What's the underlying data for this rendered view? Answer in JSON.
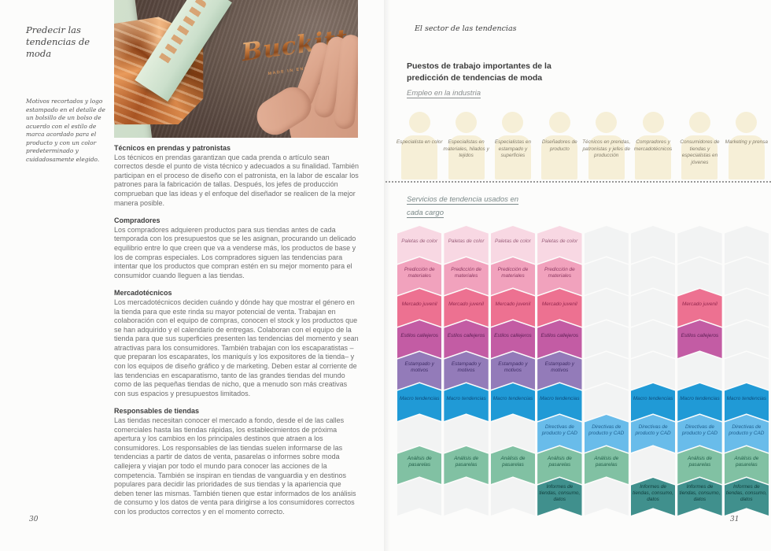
{
  "left_page": {
    "margin_title": "Predecir las tendencias de moda",
    "caption": "Motivos recortados y logo estampado en el detalle de un bolsillo de un bolso de acuerdo con el estilo de marca acordado para el producto y con un color predeterminado y cuidadosamente elegido.",
    "photo": {
      "logo_text": "Buckitt",
      "made_in_text": "MADE IN ENGLAND"
    },
    "sections": [
      {
        "heading": "Técnicos en prendas y patronistas",
        "body": "Los técnicos en prendas garantizan que cada prenda o artículo sean correctos desde el punto de vista técnico y adecuados a su finalidad. También participan en el proceso de diseño con el patronista, en la labor de escalar los patrones para la fabricación de tallas. Después, los jefes de producción comprueban que las ideas y el enfoque del diseñador se realicen de la mejor manera posible."
      },
      {
        "heading": "Compradores",
        "body": "Los compradores adquieren productos para sus tiendas antes de cada temporada con los presupuestos que se les asignan, procurando un delicado equilibrio entre lo que creen que va a venderse más, los productos de base y los de compras especiales. Los compradores siguen las tendencias para intentar que los productos que compran estén en su mejor momento para el consumidor cuando lleguen a las tiendas."
      },
      {
        "heading": "Mercadotécnicos",
        "body": "Los mercadotécnicos deciden cuándo y dónde hay que mostrar el género en la tienda para que este rinda su mayor potencial de venta. Trabajan en colaboración con el equipo de compras, conocen el stock y los productos que se han adquirido y el calendario de entregas. Colaboran con el equipo de la tienda para que sus superficies presenten las tendencias del momento y sean atractivas para los consumidores. También trabajan con los escaparatistas –que preparan los escaparates, los maniquís y los expositores de la tienda– y con los equipos de diseño gráfico y de marketing. Deben estar al corriente de las tendencias en escaparatismo, tanto de las grandes tiendas del mundo como de las pequeñas tiendas de nicho, que a menudo son más creativas con sus espacios y presupuestos limitados."
      },
      {
        "heading": "Responsables de tiendas",
        "body": "Las tiendas necesitan conocer el mercado a fondo, desde el de las calles comerciales hasta las tiendas rápidas, los establecimientos de próxima apertura y los cambios en los principales destinos que atraen a los consumidores. Los responsables de las tiendas suelen informarse de las tendencias a partir de datos de venta, pasarelas o informes sobre moda callejera y viajan por todo el mundo para conocer las acciones de la competencia. También se inspiran en tiendas de vanguardia y en destinos populares para decidir las prioridades de sus tiendas y la apariencia que deben tener las mismas. También tienen que estar informados de los análisis de consumo y los datos de venta para dirigirse a los consumidores correctos con los productos correctos y en el momento correcto."
      }
    ],
    "page_number": "30"
  },
  "right_page": {
    "running_head": "El sector de las tendencias",
    "title": "Puestos de trabajo importantes de la predicción de tendencias de moda",
    "subtitle": "Empleo en la industria",
    "roles": [
      "Especialista en color",
      "Especialistas en materiales, hilados y tejidos",
      "Especialistas en estampado y superficies",
      "Diseñadores de producto",
      "Técnicos en prendas, patronistas y jefes de producción",
      "Compradores y mercadotécnicos",
      "Consumidores de tiendas y especialistas en jóvenes",
      "Marketing y prensa"
    ],
    "services_heading": "Servicios de tendencia usados en cada cargo",
    "services_matrix": {
      "type": "matrix-diagram",
      "empty_color": "#f2f3f3",
      "figure_color": "#f6efd7",
      "rows": [
        {
          "label": "Paletas de color",
          "color": "#f8d8e3",
          "text_color": "#9b5f7b",
          "cells": [
            1,
            1,
            1,
            1,
            0,
            0,
            0,
            0
          ]
        },
        {
          "label": "Predicción de materiales",
          "color": "#f1a2bd",
          "text_color": "#8d3a62",
          "cells": [
            1,
            1,
            1,
            1,
            0,
            0,
            0,
            0
          ]
        },
        {
          "label": "Mercado juvenil",
          "color": "#ed7191",
          "text_color": "#93264d",
          "cells": [
            1,
            1,
            1,
            1,
            0,
            0,
            1,
            0
          ]
        },
        {
          "label": "Estilos callejeros",
          "color": "#c35ca4",
          "text_color": "#5f2157",
          "cells": [
            1,
            1,
            1,
            1,
            0,
            0,
            1,
            0
          ]
        },
        {
          "label": "Estampado y motivos",
          "color": "#937bb9",
          "text_color": "#3f2d66",
          "cells": [
            1,
            1,
            1,
            1,
            0,
            0,
            0,
            0
          ]
        },
        {
          "label": "Macro tendencias",
          "color": "#209ad6",
          "text_color": "#0d4d7e",
          "cells": [
            1,
            1,
            1,
            1,
            0,
            1,
            1,
            1
          ]
        },
        {
          "label": "Directivas de producto y CAD",
          "color": "#69bcea",
          "text_color": "#1d5e8e",
          "cells": [
            0,
            0,
            0,
            1,
            1,
            1,
            1,
            1
          ]
        },
        {
          "label": "Análisis de pasarelas",
          "color": "#81c1a3",
          "text_color": "#23604a",
          "cells": [
            1,
            1,
            1,
            1,
            1,
            0,
            1,
            1
          ]
        },
        {
          "label": "Informes de tiendas, consumo, datos",
          "color": "#40908d",
          "text_color": "#0f3d3c",
          "cells": [
            0,
            0,
            0,
            1,
            0,
            1,
            1,
            1
          ]
        }
      ]
    },
    "page_number": "31"
  }
}
